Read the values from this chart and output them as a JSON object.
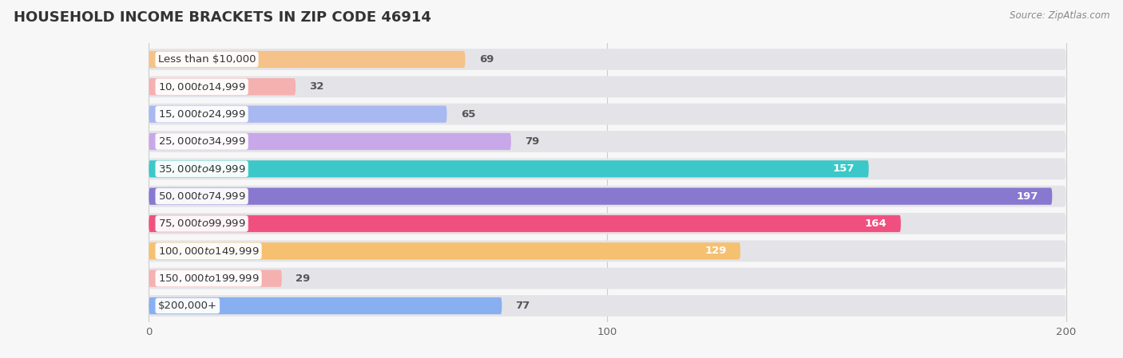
{
  "title": "HOUSEHOLD INCOME BRACKETS IN ZIP CODE 46914",
  "source": "Source: ZipAtlas.com",
  "categories": [
    "Less than $10,000",
    "$10,000 to $14,999",
    "$15,000 to $24,999",
    "$25,000 to $34,999",
    "$35,000 to $49,999",
    "$50,000 to $74,999",
    "$75,000 to $99,999",
    "$100,000 to $149,999",
    "$150,000 to $199,999",
    "$200,000+"
  ],
  "values": [
    69,
    32,
    65,
    79,
    157,
    197,
    164,
    129,
    29,
    77
  ],
  "bar_colors": [
    "#f5c28a",
    "#f5b0b0",
    "#a8b8f0",
    "#c8a8e8",
    "#3cc8c8",
    "#8878d0",
    "#f05080",
    "#f5c070",
    "#f5b0b0",
    "#88b0f0"
  ],
  "xlim_left": -30,
  "xlim_right": 210,
  "background_color": "#f7f7f7",
  "bar_bg_color": "#e4e4e8",
  "title_fontsize": 13,
  "label_fontsize": 9.5,
  "value_fontsize": 9.5,
  "source_fontsize": 8.5,
  "tick_values": [
    0,
    100,
    200
  ],
  "inside_label_threshold": 100
}
